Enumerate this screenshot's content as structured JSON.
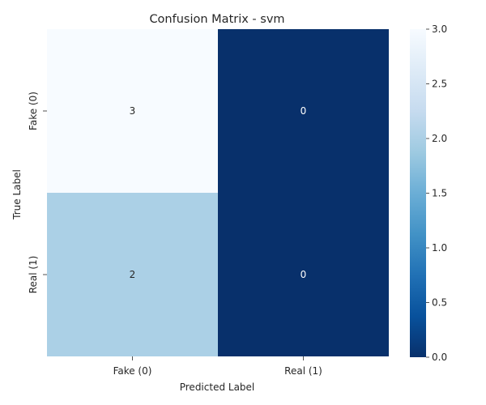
{
  "chart_data": {
    "type": "heatmap",
    "title": "Confusion Matrix - svm",
    "xlabel": "Predicted Label",
    "ylabel": "True Label",
    "x_categories": [
      "Fake (0)",
      "Real (1)"
    ],
    "y_categories": [
      "Fake (0)",
      "Real (1)"
    ],
    "values": [
      [
        3,
        0
      ],
      [
        2,
        0
      ]
    ],
    "colorbar": {
      "colormap": "Blues",
      "range": [
        0,
        3
      ],
      "ticks": [
        "0.0",
        "0.5",
        "1.0",
        "1.5",
        "2.0",
        "2.5",
        "3.0"
      ]
    },
    "cell_colors": [
      [
        "#f7fbff",
        "#08306b"
      ],
      [
        "#abd0e6",
        "#08306b"
      ]
    ],
    "annotation_colors": [
      [
        "#262626",
        "#ffffff"
      ],
      [
        "#262626",
        "#ffffff"
      ]
    ],
    "colorbar_gradient": [
      "#08306b",
      "#08519c",
      "#2171b5",
      "#4292c6",
      "#6baed6",
      "#9ecae1",
      "#c6dbef",
      "#deebf7",
      "#f7fbff"
    ]
  }
}
